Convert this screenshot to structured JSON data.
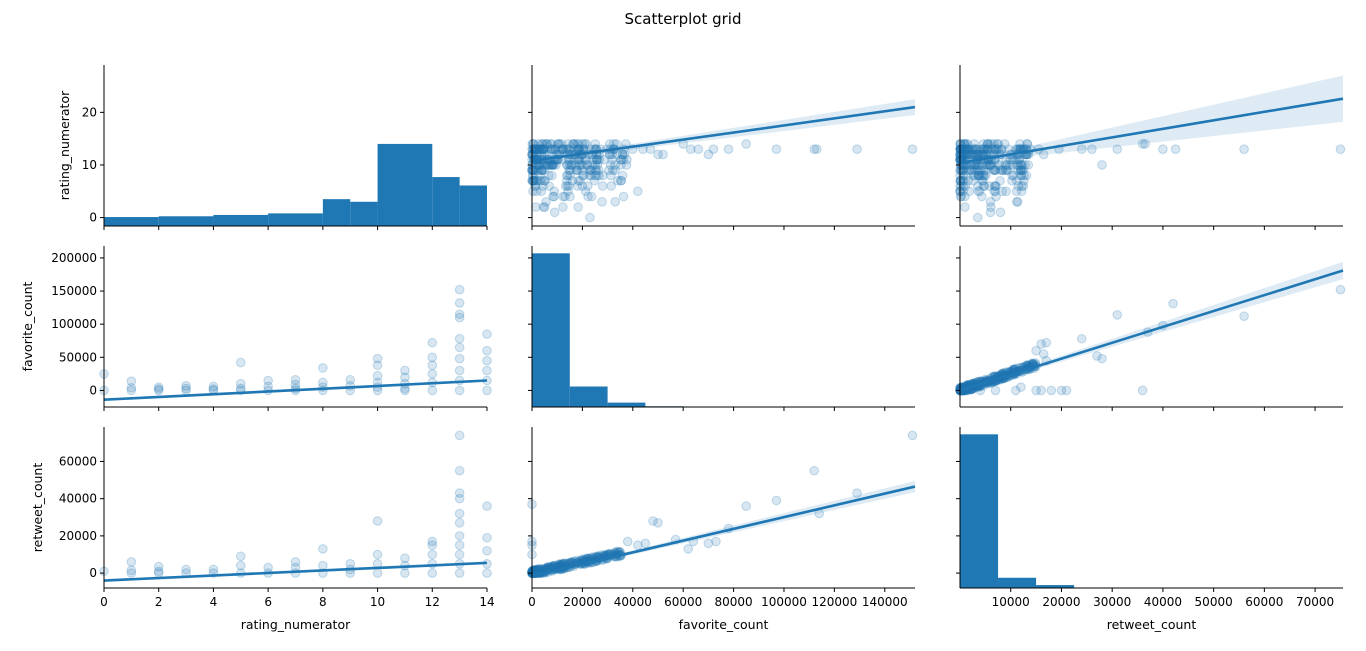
{
  "figure": {
    "title": "Scatterplot grid",
    "variables": [
      "rating_numerator",
      "favorite_count",
      "retweet_count"
    ],
    "color": "#1f77b4"
  },
  "chart_data": [
    {
      "type": "bar",
      "row": "rating_numerator",
      "col": "rating_numerator",
      "diag": true,
      "xlim": [
        0,
        14
      ],
      "ylim": [
        -1.6,
        29
      ],
      "bins": [
        [
          0,
          2,
          0.1
        ],
        [
          2,
          4,
          0.25
        ],
        [
          4,
          6,
          0.5
        ],
        [
          6,
          8,
          0.8
        ],
        [
          8,
          9,
          3.5
        ],
        [
          9,
          10,
          3.0
        ],
        [
          10,
          12,
          14.0
        ],
        [
          12,
          13,
          7.7
        ],
        [
          13,
          14,
          6.1
        ]
      ]
    },
    {
      "type": "scatter",
      "row": "rating_numerator",
      "col": "favorite_count",
      "xlim": [
        0,
        152000
      ],
      "ylim": [
        -1.6,
        29
      ],
      "regression": {
        "x": [
          0,
          152000
        ],
        "y": [
          10.8,
          21.0
        ],
        "ci_lower": [
          10.6,
          19.5
        ],
        "ci_upper": [
          11.0,
          22.5
        ]
      },
      "points": [
        [
          40000,
          13
        ],
        [
          42000,
          5
        ],
        [
          44000,
          13
        ],
        [
          47000,
          13
        ],
        [
          50000,
          12
        ],
        [
          52000,
          12
        ],
        [
          60000,
          14
        ],
        [
          63000,
          13
        ],
        [
          66000,
          13
        ],
        [
          70000,
          12
        ],
        [
          72000,
          13
        ],
        [
          78000,
          13
        ],
        [
          85000,
          14
        ],
        [
          97000,
          13
        ],
        [
          112000,
          13
        ],
        [
          113000,
          13
        ],
        [
          129000,
          13
        ],
        [
          151000,
          13
        ],
        [
          9000,
          1
        ],
        [
          23000,
          0
        ],
        [
          14000,
          6
        ],
        [
          16000,
          7
        ],
        [
          36000,
          8
        ],
        [
          26000,
          11
        ],
        [
          31000,
          12
        ]
      ],
      "cluster": {
        "x_max": 38000,
        "y_min": 0,
        "y_max": 14,
        "n": 300
      }
    },
    {
      "type": "scatter",
      "row": "rating_numerator",
      "col": "retweet_count",
      "xlim": [
        0,
        75500
      ],
      "ylim": [
        -1.6,
        29
      ],
      "regression": {
        "x": [
          0,
          75500
        ],
        "y": [
          10.4,
          22.6
        ],
        "ci_lower": [
          10.2,
          18.2
        ],
        "ci_upper": [
          10.6,
          27.0
        ]
      },
      "points": [
        [
          15500,
          13
        ],
        [
          16500,
          12
        ],
        [
          19500,
          13
        ],
        [
          24000,
          13
        ],
        [
          26000,
          13
        ],
        [
          28000,
          10
        ],
        [
          31000,
          13
        ],
        [
          36000,
          14
        ],
        [
          36500,
          14
        ],
        [
          40000,
          13
        ],
        [
          42500,
          13
        ],
        [
          56000,
          13
        ],
        [
          75000,
          13
        ],
        [
          6000,
          1
        ],
        [
          3500,
          0
        ],
        [
          12000,
          8
        ]
      ],
      "cluster": {
        "x_max": 14000,
        "y_min": 0,
        "y_max": 14,
        "n": 300
      }
    },
    {
      "type": "scatter",
      "row": "favorite_count",
      "col": "rating_numerator",
      "xlim": [
        0,
        14
      ],
      "ylim": [
        -25000,
        218000
      ],
      "regression": {
        "x": [
          0,
          14
        ],
        "y": [
          -14000,
          15000
        ],
        "ci_lower": [
          -16000,
          13000
        ],
        "ci_upper": [
          -12000,
          17000
        ]
      },
      "points": [
        [
          0,
          25000
        ],
        [
          0,
          0
        ],
        [
          1,
          14000
        ],
        [
          1,
          4000
        ],
        [
          1,
          0
        ],
        [
          2,
          5000
        ],
        [
          2,
          2000
        ],
        [
          2,
          0
        ],
        [
          3,
          7000
        ],
        [
          3,
          3000
        ],
        [
          3,
          0
        ],
        [
          4,
          6000
        ],
        [
          4,
          2000
        ],
        [
          4,
          0
        ],
        [
          5,
          42000
        ],
        [
          5,
          10000
        ],
        [
          5,
          3000
        ],
        [
          5,
          0
        ],
        [
          6,
          15000
        ],
        [
          6,
          6000
        ],
        [
          6,
          0
        ],
        [
          7,
          16000
        ],
        [
          7,
          9000
        ],
        [
          7,
          3000
        ],
        [
          7,
          0
        ],
        [
          8,
          34000
        ],
        [
          8,
          12000
        ],
        [
          8,
          5000
        ],
        [
          8,
          0
        ],
        [
          9,
          16000
        ],
        [
          9,
          7000
        ],
        [
          9,
          0
        ],
        [
          10,
          48000
        ],
        [
          10,
          38000
        ],
        [
          10,
          22000
        ],
        [
          10,
          12000
        ],
        [
          10,
          5000
        ],
        [
          10,
          0
        ],
        [
          11,
          30000
        ],
        [
          11,
          20000
        ],
        [
          11,
          10000
        ],
        [
          11,
          3000
        ],
        [
          11,
          0
        ],
        [
          12,
          72000
        ],
        [
          12,
          50000
        ],
        [
          12,
          38000
        ],
        [
          12,
          25000
        ],
        [
          12,
          12000
        ],
        [
          12,
          0
        ],
        [
          13,
          152000
        ],
        [
          13,
          132000
        ],
        [
          13,
          115000
        ],
        [
          13,
          110000
        ],
        [
          13,
          78000
        ],
        [
          13,
          65000
        ],
        [
          13,
          48000
        ],
        [
          13,
          30000
        ],
        [
          13,
          15000
        ],
        [
          13,
          0
        ],
        [
          14,
          85000
        ],
        [
          14,
          60000
        ],
        [
          14,
          45000
        ],
        [
          14,
          30000
        ],
        [
          14,
          15000
        ],
        [
          14,
          0
        ]
      ],
      "cluster": {
        "x_max": 0,
        "y_min": 0,
        "y_max": 0,
        "n": 0
      }
    },
    {
      "type": "bar",
      "row": "favorite_count",
      "col": "favorite_count",
      "diag": true,
      "xlim": [
        0,
        152000
      ],
      "ylim": [
        0,
        220
      ],
      "bins": [
        [
          0,
          15000,
          210
        ],
        [
          15000,
          30000,
          28
        ],
        [
          30000,
          45000,
          6
        ],
        [
          45000,
          60000,
          1
        ],
        [
          60000,
          152000,
          0.2
        ]
      ]
    },
    {
      "type": "scatter",
      "row": "favorite_count",
      "col": "retweet_count",
      "xlim": [
        0,
        75500
      ],
      "ylim": [
        -25000,
        218000
      ],
      "regression": {
        "x": [
          0,
          75500
        ],
        "y": [
          0,
          181000
        ],
        "ci_lower": [
          -1500,
          168000
        ],
        "ci_upper": [
          1500,
          194000
        ]
      },
      "points": [
        [
          15000,
          60000
        ],
        [
          16000,
          70000
        ],
        [
          17000,
          72000
        ],
        [
          16500,
          55000
        ],
        [
          17000,
          45000
        ],
        [
          24000,
          78000
        ],
        [
          27000,
          52000
        ],
        [
          28000,
          48000
        ],
        [
          31000,
          114000
        ],
        [
          37000,
          88000
        ],
        [
          40000,
          98000
        ],
        [
          42000,
          131000
        ],
        [
          56000,
          112000
        ],
        [
          75000,
          152000
        ],
        [
          36000,
          0
        ],
        [
          20000,
          0
        ],
        [
          21000,
          0
        ],
        [
          11000,
          0
        ],
        [
          4000,
          0
        ],
        [
          7000,
          0
        ],
        [
          12000,
          5000
        ],
        [
          15000,
          0
        ],
        [
          16000,
          0
        ],
        [
          18000,
          0
        ]
      ],
      "cluster": {
        "x_max": 15000,
        "y_min": 0,
        "y_max": 45000,
        "n": 300
      }
    },
    {
      "type": "scatter",
      "row": "retweet_count",
      "col": "rating_numerator",
      "xlim": [
        0,
        14
      ],
      "ylim": [
        -8000,
        78500
      ],
      "regression": {
        "x": [
          0,
          14
        ],
        "y": [
          -4000,
          5500
        ],
        "ci_lower": [
          -4800,
          4700
        ],
        "ci_upper": [
          -3200,
          6300
        ]
      },
      "points": [
        [
          0,
          1000
        ],
        [
          1,
          6000
        ],
        [
          1,
          1500
        ],
        [
          1,
          0
        ],
        [
          2,
          3500
        ],
        [
          2,
          1000
        ],
        [
          2,
          0
        ],
        [
          3,
          2000
        ],
        [
          3,
          0
        ],
        [
          4,
          2000
        ],
        [
          4,
          0
        ],
        [
          5,
          9000
        ],
        [
          5,
          4000
        ],
        [
          5,
          0
        ],
        [
          6,
          3000
        ],
        [
          6,
          0
        ],
        [
          7,
          6000
        ],
        [
          7,
          3000
        ],
        [
          7,
          0
        ],
        [
          8,
          13000
        ],
        [
          8,
          4000
        ],
        [
          8,
          0
        ],
        [
          9,
          5000
        ],
        [
          9,
          2000
        ],
        [
          9,
          0
        ],
        [
          10,
          28000
        ],
        [
          10,
          10000
        ],
        [
          10,
          5000
        ],
        [
          10,
          0
        ],
        [
          11,
          8000
        ],
        [
          11,
          4000
        ],
        [
          11,
          0
        ],
        [
          12,
          17000
        ],
        [
          12,
          15000
        ],
        [
          12,
          10000
        ],
        [
          12,
          5000
        ],
        [
          12,
          0
        ],
        [
          13,
          74000
        ],
        [
          13,
          55000
        ],
        [
          13,
          43000
        ],
        [
          13,
          40000
        ],
        [
          13,
          32000
        ],
        [
          13,
          27000
        ],
        [
          13,
          20000
        ],
        [
          13,
          15000
        ],
        [
          13,
          10000
        ],
        [
          13,
          5000
        ],
        [
          13,
          0
        ],
        [
          14,
          36000
        ],
        [
          14,
          19000
        ],
        [
          14,
          12000
        ],
        [
          14,
          5000
        ],
        [
          14,
          0
        ]
      ],
      "cluster": {
        "x_max": 0,
        "y_min": 0,
        "y_max": 0,
        "n": 0
      }
    },
    {
      "type": "scatter",
      "row": "retweet_count",
      "col": "favorite_count",
      "xlim": [
        0,
        152000
      ],
      "ylim": [
        -8000,
        78500
      ],
      "regression": {
        "x": [
          0,
          152000
        ],
        "y": [
          -1500,
          46500
        ],
        "ci_lower": [
          -2000,
          43500
        ],
        "ci_upper": [
          -1000,
          49500
        ]
      },
      "points": [
        [
          0,
          37000
        ],
        [
          0,
          17000
        ],
        [
          0,
          15000
        ],
        [
          0,
          10000
        ],
        [
          38000,
          17000
        ],
        [
          42000,
          15000
        ],
        [
          45000,
          16000
        ],
        [
          48000,
          28000
        ],
        [
          50000,
          27000
        ],
        [
          57000,
          18000
        ],
        [
          62000,
          13000
        ],
        [
          64000,
          17000
        ],
        [
          70000,
          16000
        ],
        [
          73000,
          17000
        ],
        [
          78000,
          24000
        ],
        [
          85000,
          36000
        ],
        [
          97000,
          39000
        ],
        [
          112000,
          55000
        ],
        [
          114000,
          32000
        ],
        [
          129000,
          43000
        ],
        [
          151000,
          74000
        ]
      ],
      "cluster": {
        "x_max": 36000,
        "y_min": 0,
        "y_max": 14000,
        "n": 300
      }
    },
    {
      "type": "bar",
      "row": "retweet_count",
      "col": "retweet_count",
      "diag": true,
      "xlim": [
        0,
        75500
      ],
      "ylim": [
        0,
        220
      ],
      "bins": [
        [
          0,
          7500,
          210
        ],
        [
          7500,
          15000,
          14
        ],
        [
          15000,
          22500,
          4
        ],
        [
          22500,
          75500,
          0.2
        ]
      ]
    }
  ],
  "axes": {
    "left_ticks": [
      {
        "label_key": "rating_numerator",
        "ticks": [
          {
            "v": 0,
            "label": "0"
          },
          {
            "v": 10,
            "label": "10"
          },
          {
            "v": 20,
            "label": "20"
          }
        ]
      },
      {
        "label_key": "favorite_count",
        "ticks": [
          {
            "v": 0,
            "label": "0"
          },
          {
            "v": 50000,
            "label": "50000"
          },
          {
            "v": 100000,
            "label": "100000"
          },
          {
            "v": 150000,
            "label": "150000"
          },
          {
            "v": 200000,
            "label": "200000"
          }
        ]
      },
      {
        "label_key": "retweet_count",
        "ticks": [
          {
            "v": 0,
            "label": "0"
          },
          {
            "v": 20000,
            "label": "20000"
          },
          {
            "v": 40000,
            "label": "40000"
          },
          {
            "v": 60000,
            "label": "60000"
          }
        ]
      }
    ],
    "bottom_ticks": [
      {
        "label_key": "rating_numerator",
        "ticks": [
          {
            "v": 0,
            "label": "0"
          },
          {
            "v": 2,
            "label": "2"
          },
          {
            "v": 4,
            "label": "4"
          },
          {
            "v": 6,
            "label": "6"
          },
          {
            "v": 8,
            "label": "8"
          },
          {
            "v": 10,
            "label": "10"
          },
          {
            "v": 12,
            "label": "12"
          },
          {
            "v": 14,
            "label": "14"
          }
        ]
      },
      {
        "label_key": "favorite_count",
        "ticks": [
          {
            "v": 0,
            "label": "0"
          },
          {
            "v": 20000,
            "label": "20000"
          },
          {
            "v": 40000,
            "label": "40000"
          },
          {
            "v": 60000,
            "label": "60000"
          },
          {
            "v": 80000,
            "label": "80000"
          },
          {
            "v": 100000,
            "label": "100000"
          },
          {
            "v": 120000,
            "label": "120000"
          },
          {
            "v": 140000,
            "label": "140000"
          }
        ]
      },
      {
        "label_key": "retweet_count",
        "ticks": [
          {
            "v": 10000,
            "label": "10000"
          },
          {
            "v": 20000,
            "label": "20000"
          },
          {
            "v": 30000,
            "label": "30000"
          },
          {
            "v": 40000,
            "label": "40000"
          },
          {
            "v": 50000,
            "label": "50000"
          },
          {
            "v": 60000,
            "label": "60000"
          },
          {
            "v": 70000,
            "label": "70000"
          }
        ]
      }
    ]
  }
}
